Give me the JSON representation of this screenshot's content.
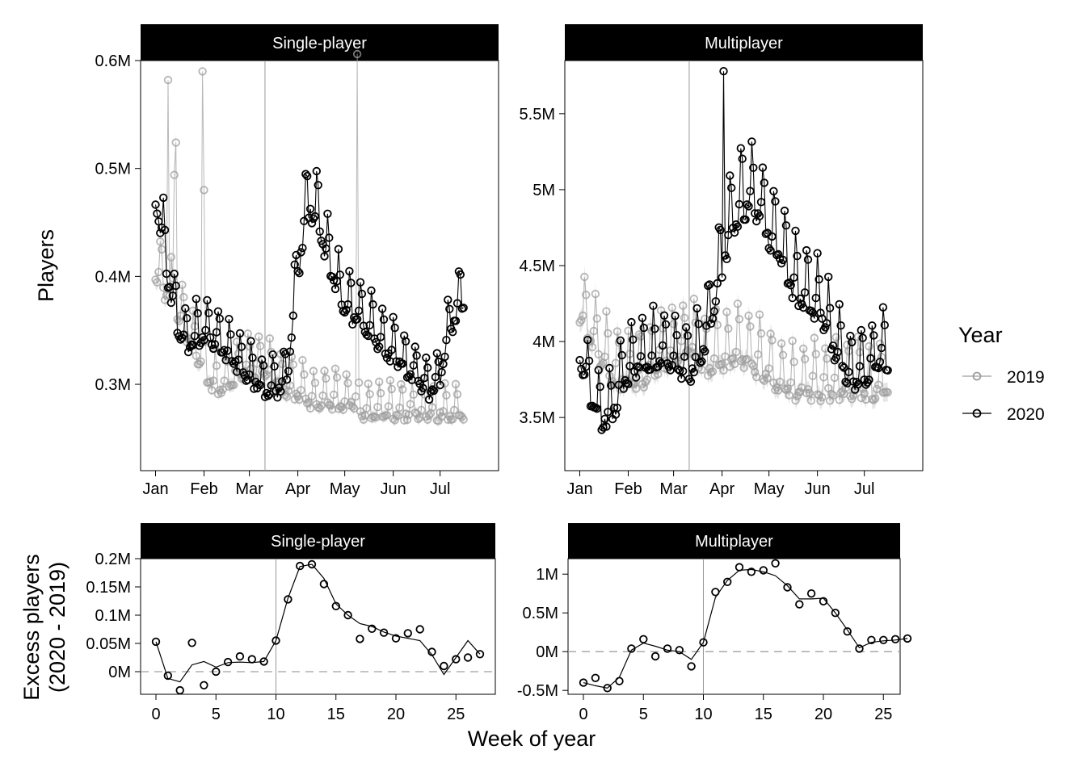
{
  "colors": {
    "y2019": "#9e9e9e",
    "y2020": "#000000",
    "ribbon": "#e3e3e3",
    "strip_bg": "#000000",
    "strip_text": "#ffffff",
    "zero_line": "#a0a0a0",
    "event_line": "#999999"
  },
  "labels": {
    "top_ylabel": "Players",
    "bottom_ylabel_line1": "Excess players",
    "bottom_ylabel_line2": "(2020 - 2019)",
    "bottom_xlabel": "Week of year",
    "legend_title": "Year",
    "legend_items": [
      "2019",
      "2020"
    ]
  },
  "chart_data": [
    {
      "type": "scatter",
      "panel": "Single-player",
      "x_ticks": [
        "Jan",
        "Feb",
        "Mar",
        "Apr",
        "May",
        "Jun",
        "Jul"
      ],
      "y_ticks": [
        "0.3M",
        "0.4M",
        "0.5M",
        "0.6M"
      ],
      "ylim": [
        0.22,
        0.6
      ],
      "event_date": "Mar 11",
      "series": [
        {
          "name": "2019",
          "daily_baseline_M": [
            0.4,
            0.38,
            0.36,
            0.34,
            0.32,
            0.3,
            0.29,
            0.3,
            0.31,
            0.31,
            0.31,
            0.3,
            0.29,
            0.29,
            0.28,
            0.28,
            0.28,
            0.28,
            0.28,
            0.27,
            0.27,
            0.27,
            0.27,
            0.27,
            0.27,
            0.27,
            0.27,
            0.27,
            0.27,
            0.27
          ],
          "outliers": [
            {
              "date": "Jan 9",
              "value": 0.582
            },
            {
              "date": "Jan 14",
              "value": 0.524
            },
            {
              "date": "Jan 13",
              "value": 0.494
            },
            {
              "date": "Jan 31",
              "value": 0.59
            },
            {
              "date": "Feb 1",
              "value": 0.48
            },
            {
              "date": "May 9",
              "value": 0.606
            }
          ]
        },
        {
          "name": "2020",
          "daily_baseline_M": [
            0.47,
            0.4,
            0.35,
            0.33,
            0.34,
            0.34,
            0.33,
            0.32,
            0.31,
            0.3,
            0.29,
            0.29,
            0.3,
            0.4,
            0.46,
            0.44,
            0.4,
            0.37,
            0.36,
            0.35,
            0.34,
            0.33,
            0.32,
            0.31,
            0.3,
            0.29,
            0.3,
            0.35,
            0.37,
            0.36
          ]
        }
      ]
    },
    {
      "type": "scatter",
      "panel": "Multiplayer",
      "x_ticks": [
        "Jan",
        "Feb",
        "Mar",
        "Apr",
        "May",
        "Jun",
        "Jul"
      ],
      "y_ticks": [
        "3.5M",
        "4M",
        "4.5M",
        "5M",
        "5.5M"
      ],
      "ylim": [
        3.15,
        5.85
      ],
      "event_date": "Mar 11",
      "series": [
        {
          "name": "2019",
          "daily_baseline_M": [
            4.15,
            4.0,
            3.85,
            3.75,
            3.7,
            3.7,
            3.75,
            3.8,
            3.85,
            3.9,
            3.9,
            3.85,
            3.8,
            3.85,
            3.85,
            3.85,
            3.8,
            3.75,
            3.7,
            3.65,
            3.65,
            3.65,
            3.65,
            3.65,
            3.65,
            3.65,
            3.65,
            3.65,
            3.65,
            3.65
          ]
        },
        {
          "name": "2020",
          "daily_baseline_M": [
            3.9,
            3.6,
            3.45,
            3.5,
            3.7,
            3.8,
            3.85,
            3.85,
            3.85,
            3.8,
            3.75,
            3.85,
            4.1,
            4.45,
            4.75,
            4.85,
            4.85,
            4.7,
            4.55,
            4.4,
            4.25,
            4.2,
            4.15,
            3.95,
            3.8,
            3.7,
            3.75,
            3.8,
            3.85,
            3.85
          ],
          "outliers": [
            {
              "date": "Apr 2",
              "value": 5.78
            }
          ]
        }
      ]
    },
    {
      "type": "scatter",
      "panel": "Single-player",
      "xlabel": "Week of year",
      "x_ticks": [
        "0",
        "5",
        "10",
        "15",
        "20",
        "25"
      ],
      "y_ticks": [
        "0M",
        "0.05M",
        "0.1M",
        "0.15M",
        "0.2M"
      ],
      "ylim": [
        -0.04,
        0.2
      ],
      "event_week": 10,
      "x": [
        0,
        1,
        2,
        3,
        4,
        5,
        6,
        7,
        8,
        9,
        10,
        11,
        12,
        13,
        14,
        15,
        16,
        17,
        18,
        19,
        20,
        21,
        22,
        23,
        24,
        25,
        26,
        27
      ],
      "points_M": [
        0.053,
        -0.007,
        -0.033,
        0.051,
        -0.024,
        0.0,
        0.017,
        0.027,
        0.022,
        0.018,
        0.055,
        0.128,
        0.187,
        0.19,
        0.155,
        0.116,
        0.1,
        0.058,
        0.076,
        0.069,
        0.059,
        0.068,
        0.075,
        0.035,
        0.01,
        0.022,
        0.025,
        0.031
      ],
      "smooth_M": [
        0.053,
        -0.012,
        -0.018,
        0.012,
        0.018,
        0.008,
        0.016,
        0.017,
        0.016,
        0.018,
        0.055,
        0.13,
        0.186,
        0.19,
        0.165,
        0.12,
        0.1,
        0.085,
        0.08,
        0.07,
        0.063,
        0.059,
        0.055,
        0.03,
        -0.005,
        0.025,
        0.055,
        0.031
      ]
    },
    {
      "type": "scatter",
      "panel": "Multiplayer",
      "xlabel": "Week of year",
      "x_ticks": [
        "0",
        "5",
        "10",
        "15",
        "20",
        "25"
      ],
      "y_ticks": [
        "-0.5M",
        "0M",
        "0.5M",
        "1M"
      ],
      "ylim": [
        -0.55,
        1.2
      ],
      "event_week": 10,
      "x": [
        0,
        1,
        2,
        3,
        4,
        5,
        6,
        7,
        8,
        9,
        10,
        11,
        12,
        13,
        14,
        15,
        16,
        17,
        18,
        19,
        20,
        21,
        22,
        23,
        24,
        25,
        26,
        27
      ],
      "points_M": [
        -0.4,
        -0.34,
        -0.47,
        -0.38,
        0.04,
        0.16,
        -0.06,
        0.04,
        0.02,
        -0.19,
        0.12,
        0.77,
        0.9,
        1.09,
        1.03,
        1.05,
        1.14,
        0.83,
        0.61,
        0.75,
        0.65,
        0.5,
        0.26,
        0.04,
        0.15,
        0.15,
        0.16,
        0.17
      ],
      "smooth_M": [
        -0.4,
        -0.44,
        -0.47,
        -0.33,
        0.02,
        0.11,
        0.07,
        0.02,
        0.0,
        -0.1,
        0.12,
        0.7,
        0.92,
        1.05,
        1.06,
        1.03,
        0.98,
        0.85,
        0.68,
        0.68,
        0.69,
        0.5,
        0.28,
        0.05,
        0.12,
        0.14,
        0.15,
        0.17
      ]
    }
  ]
}
